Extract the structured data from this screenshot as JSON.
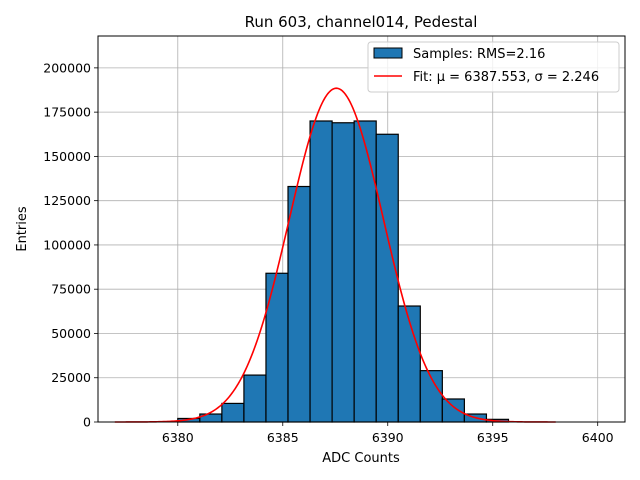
{
  "chart_data": {
    "type": "bar",
    "title": "Run 603, channel014, Pedestal",
    "xlabel": "ADC Counts",
    "ylabel": "Entries",
    "xlim": [
      6376.2,
      6401.3
    ],
    "ylim": [
      0,
      218000
    ],
    "xticks": [
      6380,
      6385,
      6390,
      6395,
      6400
    ],
    "yticks": [
      0,
      25000,
      50000,
      75000,
      100000,
      125000,
      150000,
      175000,
      200000
    ],
    "grid": true,
    "legend_position": "upper right",
    "bin_width": 1.05,
    "bins": [
      {
        "x0": 6380.0,
        "value": 2000
      },
      {
        "x0": 6381.05,
        "value": 4500
      },
      {
        "x0": 6382.1,
        "value": 10500
      },
      {
        "x0": 6383.15,
        "value": 26500
      },
      {
        "x0": 6384.2,
        "value": 84000
      },
      {
        "x0": 6385.25,
        "value": 133000
      },
      {
        "x0": 6386.3,
        "value": 170000
      },
      {
        "x0": 6387.35,
        "value": 169000
      },
      {
        "x0": 6388.4,
        "value": 170000
      },
      {
        "x0": 6389.45,
        "value": 162500
      },
      {
        "x0": 6390.5,
        "value": 65500
      },
      {
        "x0": 6391.55,
        "value": 29000
      },
      {
        "x0": 6392.6,
        "value": 13000
      },
      {
        "x0": 6393.65,
        "value": 4500
      },
      {
        "x0": 6394.7,
        "value": 1500
      }
    ],
    "fit": {
      "mu": 6387.553,
      "sigma": 2.246,
      "amplitude": 188500,
      "x_range": [
        6377.0,
        6398.0
      ],
      "color": "#ff0000"
    },
    "bar_color": "#1f77b4",
    "bar_edge_color": "#000000",
    "legend": [
      {
        "label": "Samples: RMS=2.16",
        "kind": "patch"
      },
      {
        "label": "Fit: μ = 6387.553, σ = 2.246",
        "kind": "line"
      }
    ]
  }
}
